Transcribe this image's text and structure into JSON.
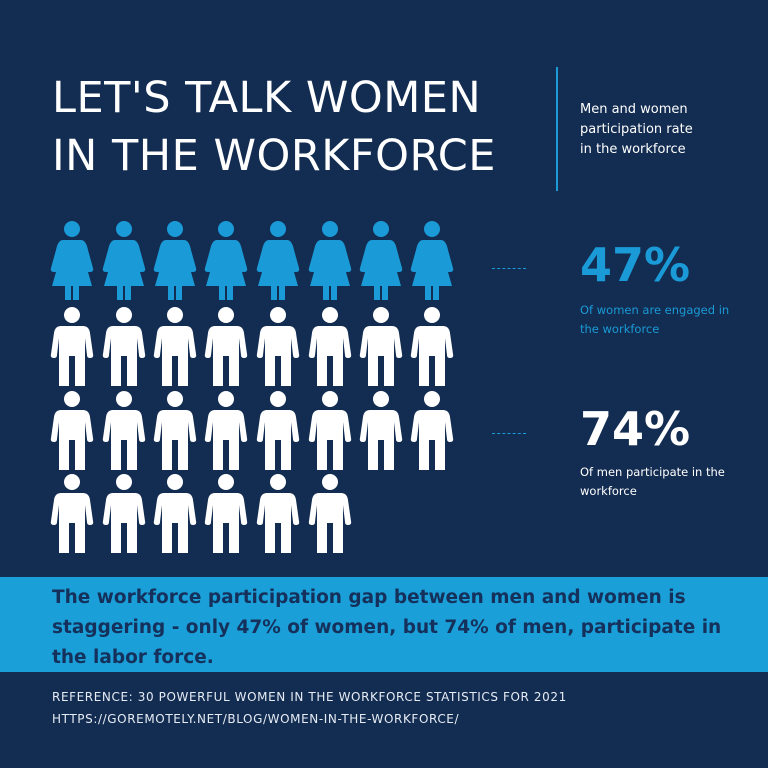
{
  "header": {
    "title": [
      "LET'S TALK WOMEN",
      "IN THE WORKFORCE"
    ],
    "subtitle": "Men and women participation rate in the workforce"
  },
  "stats": [
    {
      "value": "47%",
      "label": "Of women are engaged in the workforce"
    },
    {
      "value": "74%",
      "label": "Of men participate in the workforce"
    }
  ],
  "summary": "The workforce participation gap between men and women is staggering - only 47% of women, but 74% of men, participate in the labor force.",
  "reference": [
    "REFERENCE: 30 POWERFUL WOMEN IN THE WORKFORCE STATISTICS FOR 2021",
    "HTTPS://GOREMOTELY.NET/BLOG/WOMEN-IN-THE-WORKFORCE/"
  ]
}
